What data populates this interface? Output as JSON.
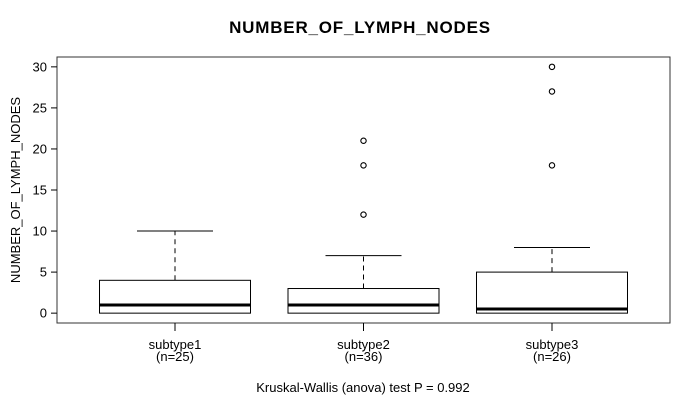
{
  "chart_data": {
    "type": "boxplot",
    "title": "NUMBER_OF_LYMPH_NODES",
    "ylabel": "NUMBER_OF_LYMPH_NODES",
    "xlabel": "",
    "caption": "Kruskal-Wallis (anova) test P = 0.992",
    "ylim": [
      -1.2,
      31.2
    ],
    "y_ticks": [
      0,
      5,
      10,
      15,
      20,
      25,
      30
    ],
    "grid": false,
    "legend": "none",
    "categories": [
      "subtype1",
      "subtype2",
      "subtype3"
    ],
    "groups": [
      {
        "label": "subtype1",
        "sublabel": "(n=25)",
        "n": 25,
        "whisker_low": 0,
        "q1": 0,
        "median": 1,
        "q3": 4,
        "whisker_high": 10,
        "outliers": []
      },
      {
        "label": "subtype2",
        "sublabel": "(n=36)",
        "n": 36,
        "whisker_low": 0,
        "q1": 0,
        "median": 1,
        "q3": 3,
        "whisker_high": 7,
        "outliers": [
          12,
          18,
          21
        ]
      },
      {
        "label": "subtype3",
        "sublabel": "(n=26)",
        "n": 26,
        "whisker_low": 0,
        "q1": 0,
        "median": 0.5,
        "q3": 5,
        "whisker_high": 8,
        "outliers": [
          18,
          27,
          30
        ]
      }
    ],
    "colors": {
      "stroke": "#000000",
      "box_fill": "#ffffff",
      "background": "#ffffff",
      "border": "#333333"
    }
  }
}
